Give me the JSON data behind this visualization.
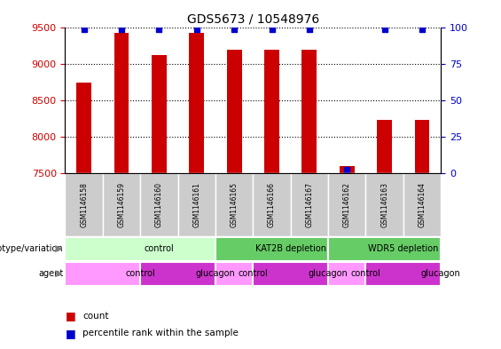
{
  "title": "GDS5673 / 10548976",
  "samples": [
    "GSM1146158",
    "GSM1146159",
    "GSM1146160",
    "GSM1146161",
    "GSM1146165",
    "GSM1146166",
    "GSM1146167",
    "GSM1146162",
    "GSM1146163",
    "GSM1146164"
  ],
  "counts": [
    8750,
    9430,
    9120,
    9430,
    9200,
    9200,
    9200,
    7600,
    8230,
    8230
  ],
  "percentiles": [
    99,
    99,
    99,
    99,
    99,
    99,
    99,
    2,
    99,
    99
  ],
  "ylim_left": [
    7500,
    9500
  ],
  "ylim_right": [
    0,
    100
  ],
  "yticks_left": [
    7500,
    8000,
    8500,
    9000,
    9500
  ],
  "yticks_right": [
    0,
    25,
    50,
    75,
    100
  ],
  "left_color": "#cc0000",
  "right_color": "#0000cc",
  "bar_color": "#cc0000",
  "dot_color": "#0000cc",
  "genotype_groups": [
    {
      "label": "control",
      "start": 0,
      "end": 4,
      "color": "#ccffcc"
    },
    {
      "label": "KAT2B depletion",
      "start": 4,
      "end": 7,
      "color": "#66cc66"
    },
    {
      "label": "WDR5 depletion",
      "start": 7,
      "end": 10,
      "color": "#66cc66"
    }
  ],
  "agent_groups": [
    {
      "label": "control",
      "start": 0,
      "end": 2,
      "color": "#ff99ff"
    },
    {
      "label": "glucagon",
      "start": 2,
      "end": 4,
      "color": "#cc33cc"
    },
    {
      "label": "control",
      "start": 4,
      "end": 5,
      "color": "#ff99ff"
    },
    {
      "label": "glucagon",
      "start": 5,
      "end": 7,
      "color": "#cc33cc"
    },
    {
      "label": "control",
      "start": 7,
      "end": 8,
      "color": "#ff99ff"
    },
    {
      "label": "glucagon",
      "start": 8,
      "end": 10,
      "color": "#cc33cc"
    }
  ],
  "xlabel_genotype": "genotype/variation",
  "xlabel_agent": "agent",
  "legend_count": "count",
  "legend_percentile": "percentile rank within the sample",
  "tick_label_color_left": "#cc0000",
  "tick_label_color_right": "#0000cc",
  "bg_color": "#ffffff",
  "grid_color": "#000000",
  "sample_bg_color": "#cccccc",
  "bar_width": 0.4
}
